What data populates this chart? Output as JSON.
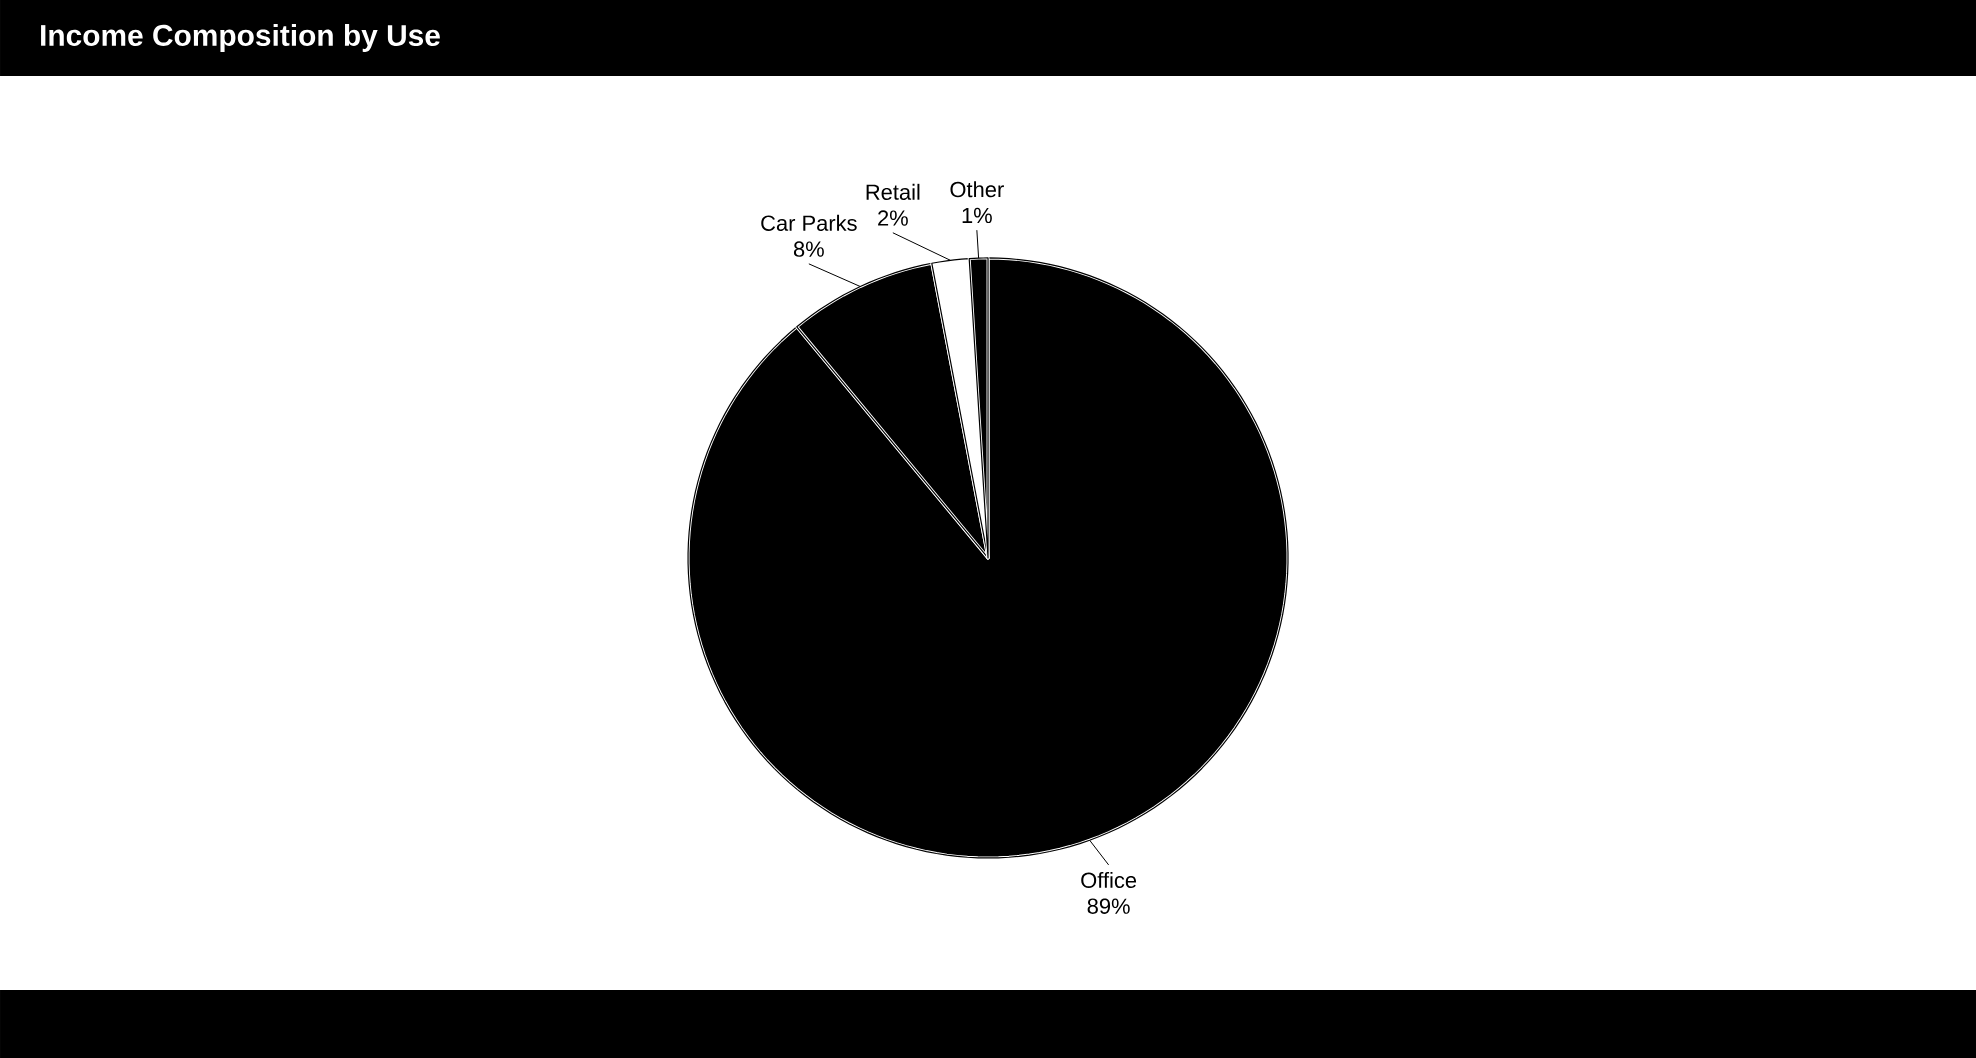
{
  "chart_data": {
    "type": "pie",
    "title": "Income Composition by Use",
    "categories": [
      "Office",
      "Car Parks",
      "Retail",
      "Other"
    ],
    "values": [
      89,
      8,
      2,
      1
    ],
    "value_labels": [
      "89%",
      "8%",
      "2%",
      "1%"
    ],
    "colors": [
      "#000000",
      "#000000",
      "#ffffff",
      "#000000"
    ]
  }
}
